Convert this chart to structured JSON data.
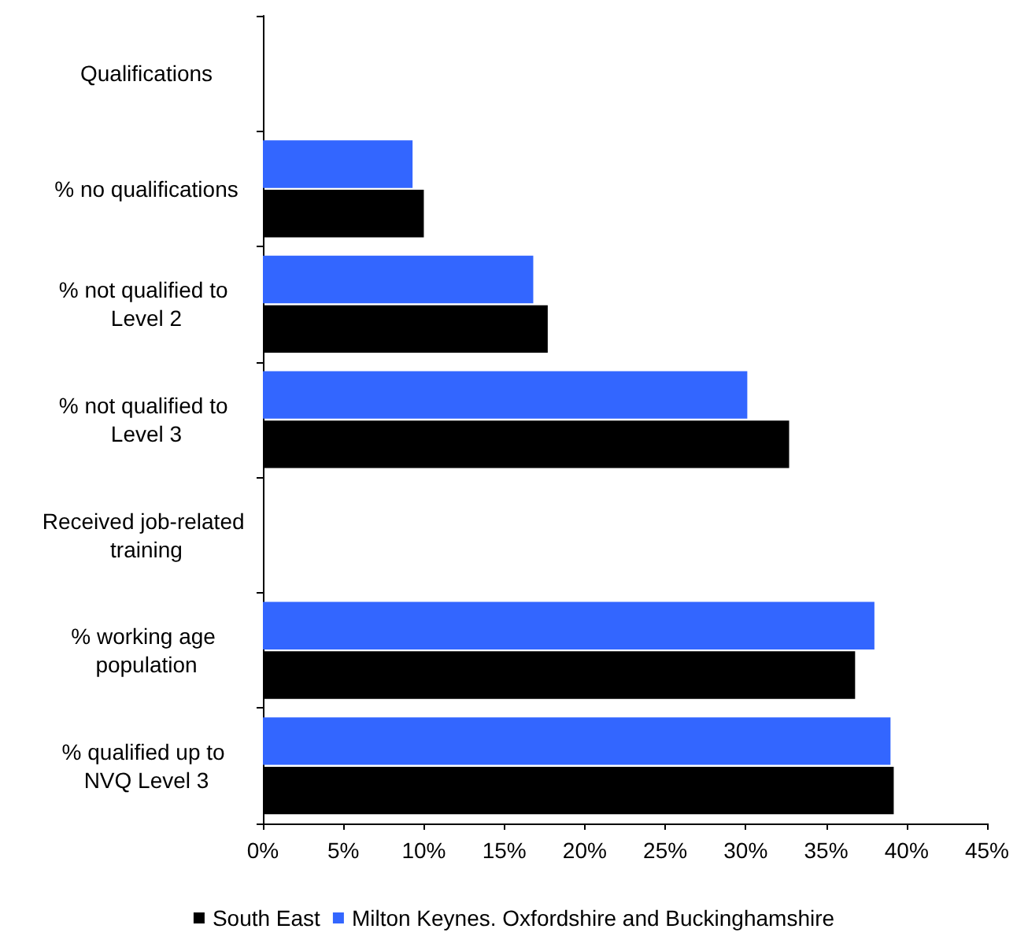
{
  "chart_data": {
    "type": "bar",
    "orientation": "horizontal",
    "categories": [
      "Qualifications",
      "% no qualifications",
      "% not qualified to Level 2",
      "% not qualified to Level 3",
      "Received job-related training",
      "% working age population",
      "% qualified up to NVQ Level 3"
    ],
    "series": [
      {
        "name": "South East",
        "color": "#000000",
        "values": [
          null,
          10.0,
          17.7,
          32.7,
          null,
          36.8,
          39.2
        ]
      },
      {
        "name": "Milton Keynes. Oxfordshire and Buckinghamshire",
        "color": "#3366ff",
        "values": [
          null,
          9.3,
          16.8,
          30.1,
          null,
          38.0,
          39.0
        ]
      }
    ],
    "xlim": [
      0,
      45
    ],
    "xticks": [
      {
        "value": 0,
        "label": "0%"
      },
      {
        "value": 5,
        "label": "5%"
      },
      {
        "value": 10,
        "label": "10%"
      },
      {
        "value": 15,
        "label": "15%"
      },
      {
        "value": 20,
        "label": "20%"
      },
      {
        "value": 25,
        "label": "25%"
      },
      {
        "value": 30,
        "label": "30%"
      },
      {
        "value": 35,
        "label": "35%"
      },
      {
        "value": 40,
        "label": "40%"
      },
      {
        "value": 45,
        "label": "45%"
      }
    ],
    "grid": false,
    "legend": "bottom"
  }
}
